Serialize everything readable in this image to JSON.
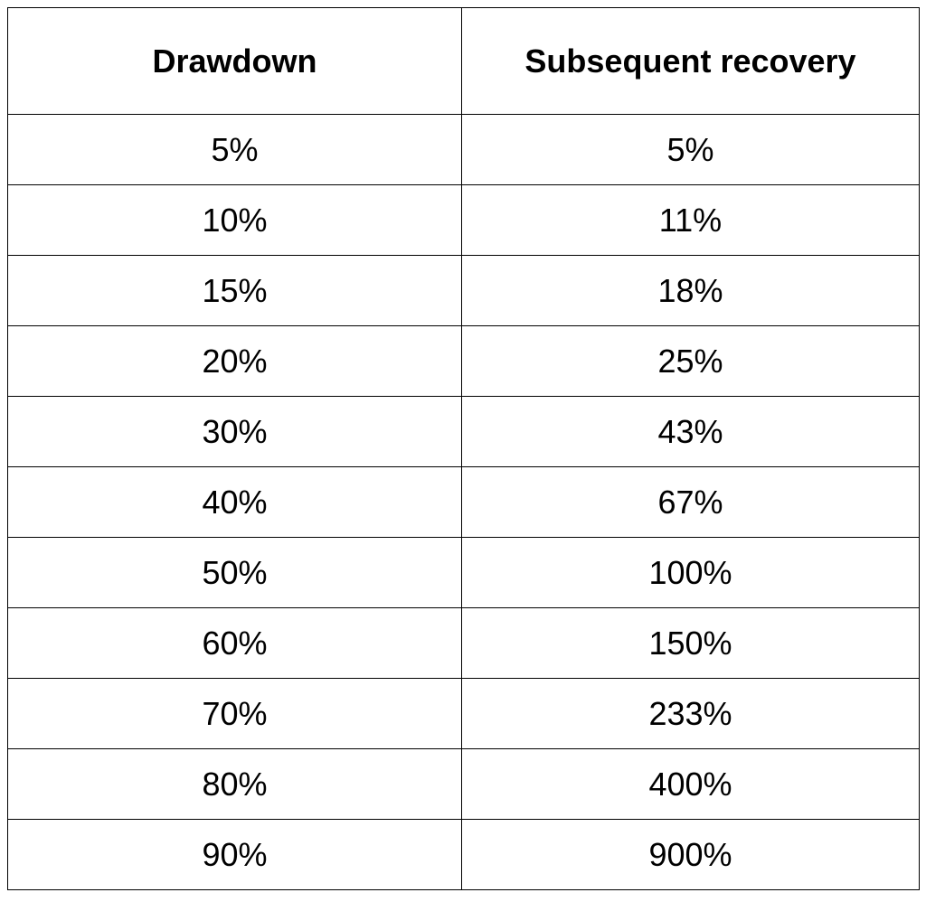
{
  "table": {
    "header": [
      "Drawdown",
      "Subsequent recovery"
    ],
    "rows": [
      [
        "5%",
        "5%"
      ],
      [
        "10%",
        "11%"
      ],
      [
        "15%",
        "18%"
      ],
      [
        "20%",
        "25%"
      ],
      [
        "30%",
        "43%"
      ],
      [
        "40%",
        "67%"
      ],
      [
        "50%",
        "100%"
      ],
      [
        "60%",
        "150%"
      ],
      [
        "70%",
        "233%"
      ],
      [
        "80%",
        "400%"
      ],
      [
        "90%",
        "900%"
      ]
    ]
  }
}
